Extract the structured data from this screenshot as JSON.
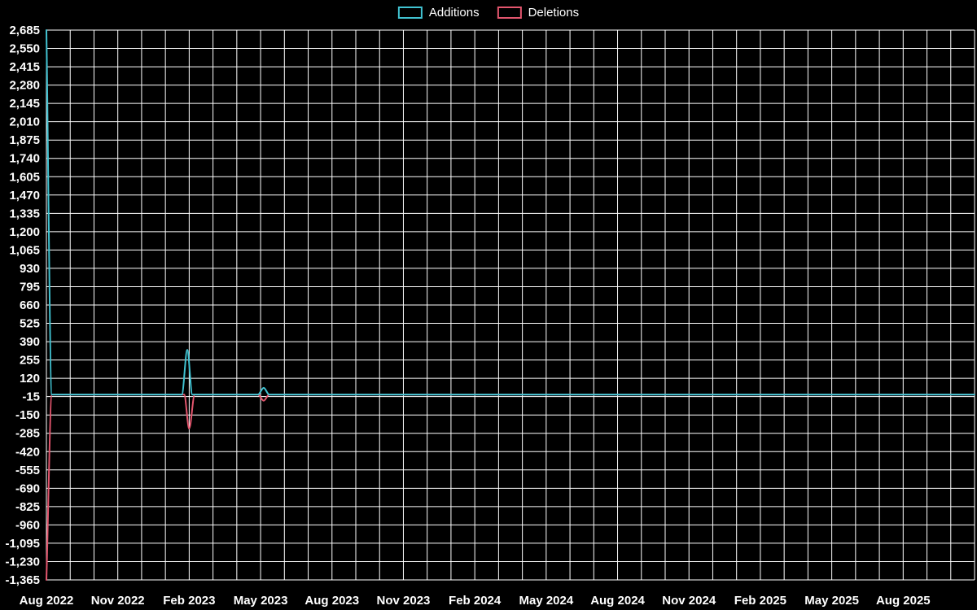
{
  "colors": {
    "background": "#000000",
    "grid": "#ffffff",
    "text": "#ffffff",
    "additions": "#41c3d2",
    "deletions": "#e4566e"
  },
  "chart_data": {
    "type": "line",
    "title": "",
    "legend_position": "top-center",
    "legend_items": [
      {
        "label": "Additions",
        "color": "#41c3d2"
      },
      {
        "label": "Deletions",
        "color": "#e4566e"
      }
    ],
    "x_start": "2022-08-01",
    "x_total_months": 39,
    "x_tick_every_months": 3,
    "x_ticks": [
      "Aug 2022",
      "Nov 2022",
      "Feb 2023",
      "May 2023",
      "Aug 2023",
      "Nov 2023",
      "Feb 2024",
      "May 2024",
      "Aug 2024",
      "Nov 2024",
      "Feb 2025",
      "May 2025",
      "Aug 2025"
    ],
    "y_max": 2685,
    "y_min": -1365,
    "y_ticks": [
      2685,
      2550,
      2415,
      2280,
      2145,
      2010,
      1875,
      1740,
      1605,
      1470,
      1335,
      1200,
      1065,
      930,
      795,
      660,
      525,
      390,
      255,
      120,
      -15,
      -150,
      -285,
      -420,
      -555,
      -690,
      -825,
      -960,
      -1095,
      -1230,
      -1365
    ],
    "y_tick_labels": [
      "2,685",
      "2,550",
      "2,415",
      "2,280",
      "2,145",
      "2,010",
      "1,875",
      "1,740",
      "1,605",
      "1,470",
      "1,335",
      "1,200",
      "1,065",
      "930",
      "795",
      "660",
      "525",
      "390",
      "255",
      "120",
      "-15",
      "-150",
      "-285",
      "-420",
      "-555",
      "-690",
      "-825",
      "-960",
      "-1,095",
      "-1,230",
      "-1,365"
    ],
    "grid_on": true,
    "series": [
      {
        "name": "Additions",
        "color": "#41c3d2",
        "points": [
          [
            "2022-08-01",
            2685
          ],
          [
            "2022-08-08",
            0
          ],
          [
            "2023-01-22",
            0
          ],
          [
            "2023-01-29",
            330
          ],
          [
            "2023-02-05",
            0
          ],
          [
            "2023-04-28",
            0
          ],
          [
            "2023-05-05",
            50
          ],
          [
            "2023-05-12",
            0
          ],
          [
            "2025-11-01",
            0
          ]
        ]
      },
      {
        "name": "Deletions",
        "color": "#e4566e",
        "points": [
          [
            "2022-08-01",
            -1365
          ],
          [
            "2022-08-08",
            0
          ],
          [
            "2023-01-25",
            0
          ],
          [
            "2023-02-01",
            -250
          ],
          [
            "2023-02-08",
            0
          ],
          [
            "2023-04-28",
            0
          ],
          [
            "2023-05-05",
            -45
          ],
          [
            "2023-05-12",
            0
          ],
          [
            "2025-11-01",
            0
          ]
        ]
      }
    ]
  }
}
